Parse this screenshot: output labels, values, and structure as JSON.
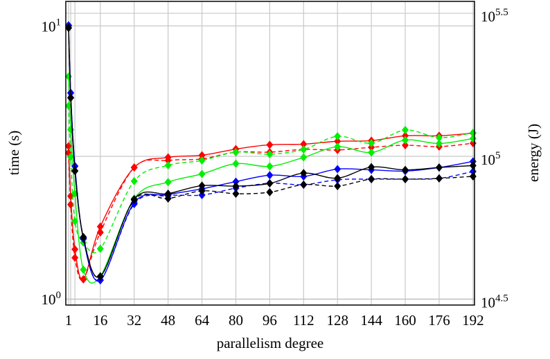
{
  "chart_data": {
    "type": "line",
    "title": "",
    "xlabel": "parallelism degree",
    "ylabel_left": "time (s)",
    "ylabel_right": "energy (J)",
    "y_left_scale": "log",
    "y_right_scale": "log",
    "xlim": [
      -0.3,
      192.7
    ],
    "ylim_left": [
      0.95,
      12.3
    ],
    "ylim_right": [
      30200,
      348000
    ],
    "grid": true,
    "legend": "none",
    "x_ticks": [
      1,
      16,
      32,
      48,
      64,
      80,
      96,
      112,
      128,
      144,
      160,
      176,
      192
    ],
    "y_left_ticks": [
      {
        "base": "10",
        "exp": "0",
        "value": 1
      },
      {
        "base": "10",
        "exp": "1",
        "value": 10
      }
    ],
    "y_right_ticks": [
      {
        "base": "10",
        "exp": "4.5",
        "value": 31623
      },
      {
        "base": "10",
        "exp": "5",
        "value": 100000
      },
      {
        "base": "10",
        "exp": "5.5",
        "value": 316228
      }
    ],
    "x": [
      1,
      2,
      4,
      8,
      16,
      32,
      48,
      64,
      80,
      96,
      112,
      128,
      144,
      160,
      176,
      192
    ],
    "series": [
      {
        "color": "#ff0000",
        "style": "solid",
        "axis": "left",
        "values": [
          3.63,
          2.38,
          1.52,
          1.18,
          1.84,
          3.03,
          3.3,
          3.36,
          3.54,
          3.67,
          3.69,
          3.78,
          3.8,
          3.96,
          3.96,
          4.05
        ]
      },
      {
        "color": "#ff0000",
        "style": "dashed",
        "axis": "right",
        "values": [
          102800,
          67800,
          44200,
          37150,
          54200,
          91400,
          96700,
          97900,
          103400,
          103400,
          105700,
          105200,
          107500,
          109300,
          108100,
          111100
        ]
      },
      {
        "color": "#00ee00",
        "style": "solid",
        "axis": "left",
        "values": [
          6.53,
          4.17,
          2.43,
          1.28,
          1.21,
          2.33,
          2.68,
          2.87,
          3.13,
          3.06,
          3.3,
          3.61,
          3.44,
          3.82,
          3.71,
          3.87
        ]
      },
      {
        "color": "#00ee00",
        "style": "dashed",
        "axis": "right",
        "values": [
          150000,
          99400,
          59300,
          49900,
          47500,
          81900,
          93000,
          96700,
          103400,
          101700,
          105700,
          117500,
          111100,
          123600,
          116200,
          120800
        ]
      },
      {
        "color": "#0000ff",
        "style": "solid",
        "axis": "left",
        "values": [
          10.06,
          5.68,
          3.06,
          1.66,
          1.17,
          2.25,
          2.41,
          2.53,
          2.69,
          2.84,
          2.81,
          2.99,
          2.97,
          2.94,
          3.03,
          3.19
        ]
      },
      {
        "color": "#0000ff",
        "style": "dashed",
        "axis": "right",
        "values": [
          286000,
          166800,
          92500,
          51600,
          36950,
          68100,
          72800,
          73200,
          77400,
          80500,
          79600,
          82800,
          83200,
          83200,
          83700,
          88500
        ]
      },
      {
        "color": "#000000",
        "style": "solid",
        "axis": "left",
        "values": [
          9.83,
          5.45,
          2.94,
          1.68,
          1.21,
          2.32,
          2.43,
          2.6,
          2.59,
          2.65,
          2.89,
          2.77,
          3.04,
          2.97,
          3.03,
          3.08
        ]
      },
      {
        "color": "#000000",
        "style": "dashed",
        "axis": "right",
        "values": [
          281300,
          160400,
          89000,
          52200,
          38000,
          70400,
          71200,
          75700,
          74000,
          74900,
          79600,
          78700,
          83200,
          83200,
          83700,
          85100
        ]
      }
    ]
  }
}
